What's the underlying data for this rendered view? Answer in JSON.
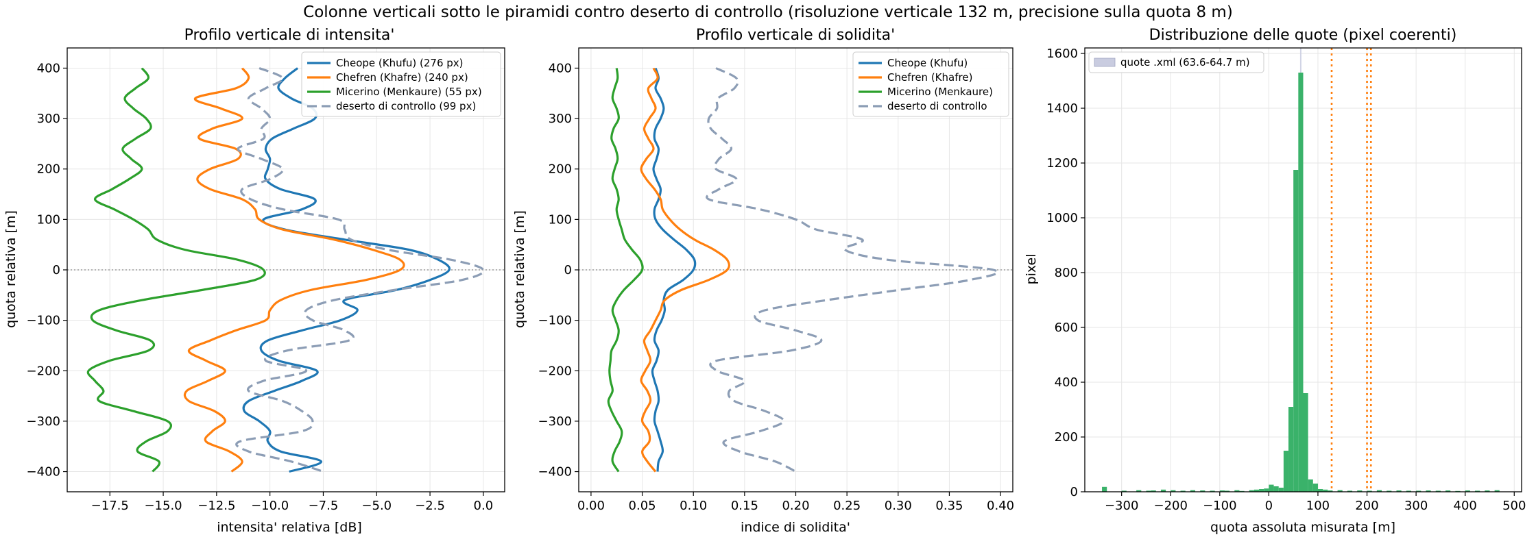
{
  "figure_title": "Colonne verticali sotto le piramidi contro deserto di controllo  (risoluzione verticale 132 m, precisione sulla quota 8 m)",
  "chart_data": [
    {
      "type": "line",
      "title": "Profilo verticale di intensita'",
      "xlabel": "intensita' relativa [dB]",
      "ylabel": "quota relativa [m]",
      "xlim": [
        -19.5,
        1.0
      ],
      "ylim": [
        -440,
        440
      ],
      "xticks": [
        -17.5,
        -15.0,
        -12.5,
        -10.0,
        -7.5,
        -5.0,
        -2.5,
        0.0
      ],
      "xtick_labels": [
        "−17.5",
        "−15.0",
        "−12.5",
        "−10.0",
        "−7.5",
        "−5.0",
        "−2.5",
        "0.0"
      ],
      "yticks": [
        -400,
        -300,
        -200,
        -100,
        0,
        100,
        200,
        300,
        400
      ],
      "ytick_labels": [
        "−400",
        "−300",
        "−200",
        "−100",
        "0",
        "100",
        "200",
        "300",
        "400"
      ],
      "grid": true,
      "reference_line_y": 0,
      "legend_position": "top-right",
      "series": [
        {
          "name": "Cheope (Khufu) (276 px)",
          "color": "#1f77b4",
          "style": "solid",
          "y": [
            400,
            380,
            360,
            340,
            320,
            300,
            280,
            260,
            240,
            220,
            200,
            180,
            160,
            140,
            120,
            100,
            80,
            60,
            40,
            20,
            0,
            -20,
            -40,
            -60,
            -80,
            -100,
            -120,
            -140,
            -160,
            -180,
            -200,
            -220,
            -240,
            -260,
            -280,
            -300,
            -320,
            -340,
            -360,
            -380,
            -400
          ],
          "x": [
            -8.7,
            -9.3,
            -9.6,
            -9.0,
            -8.0,
            -7.9,
            -8.9,
            -9.9,
            -10.2,
            -10.0,
            -10.1,
            -10.2,
            -9.5,
            -7.9,
            -8.5,
            -10.3,
            -9.3,
            -6.5,
            -3.5,
            -2.1,
            -1.6,
            -2.5,
            -4.1,
            -6.5,
            -5.9,
            -6.7,
            -8.5,
            -10.1,
            -10.4,
            -9.6,
            -7.8,
            -8.5,
            -9.8,
            -11.0,
            -11.2,
            -10.5,
            -10.0,
            -10.1,
            -9.5,
            -7.6,
            -9.1
          ]
        },
        {
          "name": "Chefren (Khafre) (240 px)",
          "color": "#ff7f0e",
          "style": "solid",
          "y": [
            400,
            380,
            360,
            340,
            320,
            300,
            280,
            260,
            240,
            220,
            200,
            180,
            160,
            140,
            120,
            100,
            80,
            60,
            40,
            20,
            0,
            -20,
            -40,
            -60,
            -80,
            -100,
            -120,
            -140,
            -160,
            -180,
            -200,
            -220,
            -240,
            -260,
            -280,
            -300,
            -320,
            -340,
            -360,
            -380,
            -400
          ],
          "x": [
            -11.3,
            -11.0,
            -11.6,
            -13.5,
            -12.3,
            -11.3,
            -12.7,
            -13.3,
            -11.6,
            -11.5,
            -12.8,
            -13.4,
            -12.8,
            -11.3,
            -10.7,
            -10.5,
            -9.4,
            -7.0,
            -5.2,
            -3.9,
            -3.9,
            -5.5,
            -8.1,
            -9.5,
            -10.0,
            -10.2,
            -11.6,
            -12.8,
            -13.8,
            -13.0,
            -12.1,
            -12.9,
            -13.9,
            -13.8,
            -12.6,
            -12.1,
            -12.7,
            -13.0,
            -11.9,
            -11.3,
            -11.8
          ]
        },
        {
          "name": "Micerino (Menkaure) (55 px)",
          "color": "#2ca02c",
          "style": "solid",
          "y": [
            400,
            380,
            360,
            340,
            320,
            300,
            280,
            260,
            240,
            220,
            200,
            180,
            160,
            140,
            120,
            100,
            80,
            60,
            40,
            20,
            0,
            -20,
            -40,
            -60,
            -80,
            -100,
            -120,
            -140,
            -160,
            -180,
            -200,
            -220,
            -240,
            -260,
            -280,
            -300,
            -320,
            -340,
            -360,
            -380,
            -400
          ],
          "x": [
            -16.0,
            -15.7,
            -16.3,
            -16.8,
            -16.4,
            -15.8,
            -15.6,
            -16.3,
            -16.9,
            -16.5,
            -16.0,
            -16.6,
            -17.4,
            -18.2,
            -17.3,
            -16.4,
            -15.7,
            -15.3,
            -14.0,
            -11.5,
            -10.3,
            -10.7,
            -13.2,
            -16.0,
            -18.0,
            -18.3,
            -17.2,
            -15.6,
            -15.7,
            -17.5,
            -18.5,
            -18.2,
            -17.8,
            -18.0,
            -16.4,
            -14.8,
            -14.8,
            -15.8,
            -16.2,
            -15.2,
            -15.5
          ]
        },
        {
          "name": "deserto di controllo (99 px)",
          "color": "#8c9db5",
          "style": "dashed",
          "y": [
            400,
            380,
            360,
            340,
            320,
            300,
            280,
            260,
            240,
            220,
            200,
            180,
            160,
            140,
            120,
            100,
            80,
            60,
            40,
            20,
            0,
            -20,
            -40,
            -60,
            -80,
            -100,
            -120,
            -140,
            -160,
            -180,
            -200,
            -220,
            -240,
            -260,
            -280,
            -300,
            -320,
            -340,
            -360,
            -380,
            -400
          ],
          "x": [
            -10.5,
            -9.4,
            -10.2,
            -11.0,
            -10.4,
            -10.0,
            -10.4,
            -10.3,
            -11.5,
            -10.4,
            -9.4,
            -10.0,
            -11.3,
            -10.9,
            -9.4,
            -6.8,
            -6.5,
            -6.2,
            -4.5,
            -1.5,
            0.0,
            -1.0,
            -4.2,
            -7.0,
            -8.3,
            -8.0,
            -6.5,
            -6.3,
            -9.2,
            -10.2,
            -8.3,
            -10.3,
            -11.0,
            -9.4,
            -8.5,
            -8.0,
            -8.5,
            -11.4,
            -11.0,
            -9.0,
            -7.5
          ]
        }
      ]
    },
    {
      "type": "line",
      "title": "Profilo verticale di solidita'",
      "xlabel": "indice di solidita'",
      "ylabel": "quota relativa [m]",
      "xlim": [
        -0.012,
        0.412
      ],
      "ylim": [
        -440,
        440
      ],
      "xticks": [
        0.0,
        0.05,
        0.1,
        0.15,
        0.2,
        0.25,
        0.3,
        0.35,
        0.4
      ],
      "xtick_labels": [
        "0.00",
        "0.05",
        "0.10",
        "0.15",
        "0.20",
        "0.25",
        "0.30",
        "0.35",
        "0.40"
      ],
      "yticks": [
        -400,
        -300,
        -200,
        -100,
        0,
        100,
        200,
        300,
        400
      ],
      "ytick_labels": [
        "−400",
        "−300",
        "−200",
        "−100",
        "0",
        "100",
        "200",
        "300",
        "400"
      ],
      "grid": true,
      "reference_line_y": 0,
      "legend_position": "top-right",
      "series": [
        {
          "name": "Cheope (Khufu)",
          "color": "#1f77b4",
          "style": "solid",
          "y": [
            400,
            380,
            360,
            340,
            320,
            300,
            280,
            260,
            240,
            220,
            200,
            180,
            160,
            140,
            120,
            100,
            80,
            60,
            40,
            20,
            0,
            -20,
            -40,
            -60,
            -80,
            -100,
            -120,
            -140,
            -160,
            -180,
            -200,
            -220,
            -240,
            -260,
            -280,
            -300,
            -320,
            -340,
            -360,
            -380,
            -400
          ],
          "x": [
            0.063,
            0.066,
            0.063,
            0.068,
            0.071,
            0.068,
            0.063,
            0.062,
            0.066,
            0.064,
            0.061,
            0.064,
            0.068,
            0.066,
            0.062,
            0.063,
            0.07,
            0.081,
            0.093,
            0.101,
            0.1,
            0.09,
            0.075,
            0.071,
            0.072,
            0.069,
            0.064,
            0.062,
            0.066,
            0.064,
            0.06,
            0.062,
            0.065,
            0.066,
            0.063,
            0.062,
            0.065,
            0.068,
            0.07,
            0.066,
            0.065
          ]
        },
        {
          "name": "Chefren (Khafre)",
          "color": "#ff7f0e",
          "style": "solid",
          "y": [
            400,
            380,
            360,
            340,
            320,
            300,
            280,
            260,
            240,
            220,
            200,
            180,
            160,
            140,
            120,
            100,
            80,
            60,
            40,
            20,
            0,
            -20,
            -40,
            -60,
            -80,
            -100,
            -120,
            -140,
            -160,
            -180,
            -200,
            -220,
            -240,
            -260,
            -280,
            -300,
            -320,
            -340,
            -360,
            -380,
            -400
          ],
          "x": [
            0.061,
            0.065,
            0.056,
            0.059,
            0.063,
            0.057,
            0.052,
            0.056,
            0.061,
            0.054,
            0.049,
            0.054,
            0.062,
            0.068,
            0.07,
            0.077,
            0.087,
            0.101,
            0.12,
            0.133,
            0.133,
            0.115,
            0.088,
            0.072,
            0.068,
            0.063,
            0.058,
            0.052,
            0.055,
            0.058,
            0.053,
            0.049,
            0.055,
            0.058,
            0.053,
            0.05,
            0.056,
            0.057,
            0.05,
            0.055,
            0.063
          ]
        },
        {
          "name": "Micerino (Menkaure)",
          "color": "#2ca02c",
          "style": "solid",
          "y": [
            400,
            380,
            360,
            340,
            320,
            300,
            280,
            260,
            240,
            220,
            200,
            180,
            160,
            140,
            120,
            100,
            80,
            60,
            40,
            20,
            0,
            -20,
            -40,
            -60,
            -80,
            -100,
            -120,
            -140,
            -160,
            -180,
            -200,
            -220,
            -240,
            -260,
            -280,
            -300,
            -320,
            -340,
            -360,
            -380,
            -400
          ],
          "x": [
            0.025,
            0.026,
            0.023,
            0.021,
            0.025,
            0.027,
            0.022,
            0.02,
            0.024,
            0.026,
            0.023,
            0.021,
            0.025,
            0.027,
            0.025,
            0.027,
            0.03,
            0.033,
            0.04,
            0.048,
            0.05,
            0.042,
            0.032,
            0.025,
            0.021,
            0.024,
            0.027,
            0.025,
            0.02,
            0.019,
            0.018,
            0.019,
            0.021,
            0.017,
            0.02,
            0.025,
            0.03,
            0.028,
            0.023,
            0.021,
            0.027
          ]
        },
        {
          "name": "deserto di controllo",
          "color": "#8c9db5",
          "style": "dashed",
          "y": [
            400,
            380,
            360,
            340,
            320,
            300,
            280,
            260,
            240,
            220,
            200,
            180,
            160,
            140,
            120,
            100,
            80,
            60,
            40,
            20,
            0,
            -20,
            -40,
            -60,
            -80,
            -100,
            -120,
            -140,
            -160,
            -180,
            -200,
            -220,
            -240,
            -260,
            -280,
            -300,
            -320,
            -340,
            -360,
            -380,
            -400
          ],
          "x": [
            0.122,
            0.142,
            0.14,
            0.124,
            0.123,
            0.115,
            0.117,
            0.128,
            0.137,
            0.125,
            0.122,
            0.142,
            0.125,
            0.115,
            0.165,
            0.2,
            0.22,
            0.265,
            0.248,
            0.29,
            0.393,
            0.37,
            0.3,
            0.23,
            0.17,
            0.163,
            0.2,
            0.225,
            0.195,
            0.123,
            0.123,
            0.15,
            0.135,
            0.14,
            0.17,
            0.188,
            0.165,
            0.13,
            0.145,
            0.18,
            0.2
          ]
        }
      ]
    },
    {
      "type": "bar",
      "title": "Distribuzione delle quote (pixel coerenti)",
      "xlabel": "quota assoluta misurata [m]",
      "ylabel": "pixel",
      "xlim": [
        -375,
        515
      ],
      "ylim": [
        0,
        1620
      ],
      "xticks": [
        -300,
        -200,
        -100,
        0,
        100,
        200,
        300,
        400,
        500
      ],
      "xtick_labels": [
        "−300",
        "−200",
        "−100",
        "0",
        "100",
        "200",
        "300",
        "400",
        "500"
      ],
      "yticks": [
        0,
        200,
        400,
        600,
        800,
        1000,
        1200,
        1400,
        1600
      ],
      "ytick_labels": [
        "0",
        "200",
        "400",
        "600",
        "800",
        "1000",
        "1200",
        "1400",
        "1600"
      ],
      "grid": true,
      "bar_color": "#3ab26a",
      "bin_width": 10,
      "bins": [
        [
          -340,
          18
        ],
        [
          -300,
          4
        ],
        [
          -270,
          6
        ],
        [
          -250,
          4
        ],
        [
          -240,
          5
        ],
        [
          -220,
          8
        ],
        [
          -200,
          6
        ],
        [
          -180,
          4
        ],
        [
          -160,
          6
        ],
        [
          -140,
          5
        ],
        [
          -120,
          4
        ],
        [
          -100,
          5
        ],
        [
          -90,
          4
        ],
        [
          -70,
          6
        ],
        [
          -60,
          3
        ],
        [
          -40,
          6
        ],
        [
          -30,
          8
        ],
        [
          -20,
          10
        ],
        [
          -10,
          12
        ],
        [
          0,
          26
        ],
        [
          10,
          20
        ],
        [
          20,
          15
        ],
        [
          30,
          150
        ],
        [
          40,
          310
        ],
        [
          50,
          1175
        ],
        [
          60,
          1530
        ],
        [
          70,
          360
        ],
        [
          80,
          45
        ],
        [
          90,
          30
        ],
        [
          100,
          10
        ],
        [
          110,
          8
        ],
        [
          120,
          5
        ],
        [
          140,
          6
        ],
        [
          160,
          4
        ],
        [
          180,
          5
        ],
        [
          200,
          4
        ],
        [
          220,
          6
        ],
        [
          240,
          4
        ],
        [
          260,
          5
        ],
        [
          280,
          4
        ],
        [
          300,
          4
        ],
        [
          320,
          5
        ],
        [
          340,
          4
        ],
        [
          360,
          5
        ],
        [
          380,
          3
        ],
        [
          400,
          5
        ],
        [
          420,
          4
        ],
        [
          440,
          5
        ],
        [
          460,
          6
        ]
      ],
      "vspan": {
        "name": "quote .xml (63.6-64.7 m)",
        "from": 63.6,
        "to": 64.7,
        "color": "#c9cce0"
      },
      "vlines": [
        {
          "x": 128,
          "color": "#ff7f0e",
          "style": "dotted"
        },
        {
          "x": 200,
          "color": "#ff7f0e",
          "style": "dotted"
        },
        {
          "x": 208,
          "color": "#ff7f0e",
          "style": "dotted"
        }
      ],
      "legend_position": "top-left"
    }
  ]
}
